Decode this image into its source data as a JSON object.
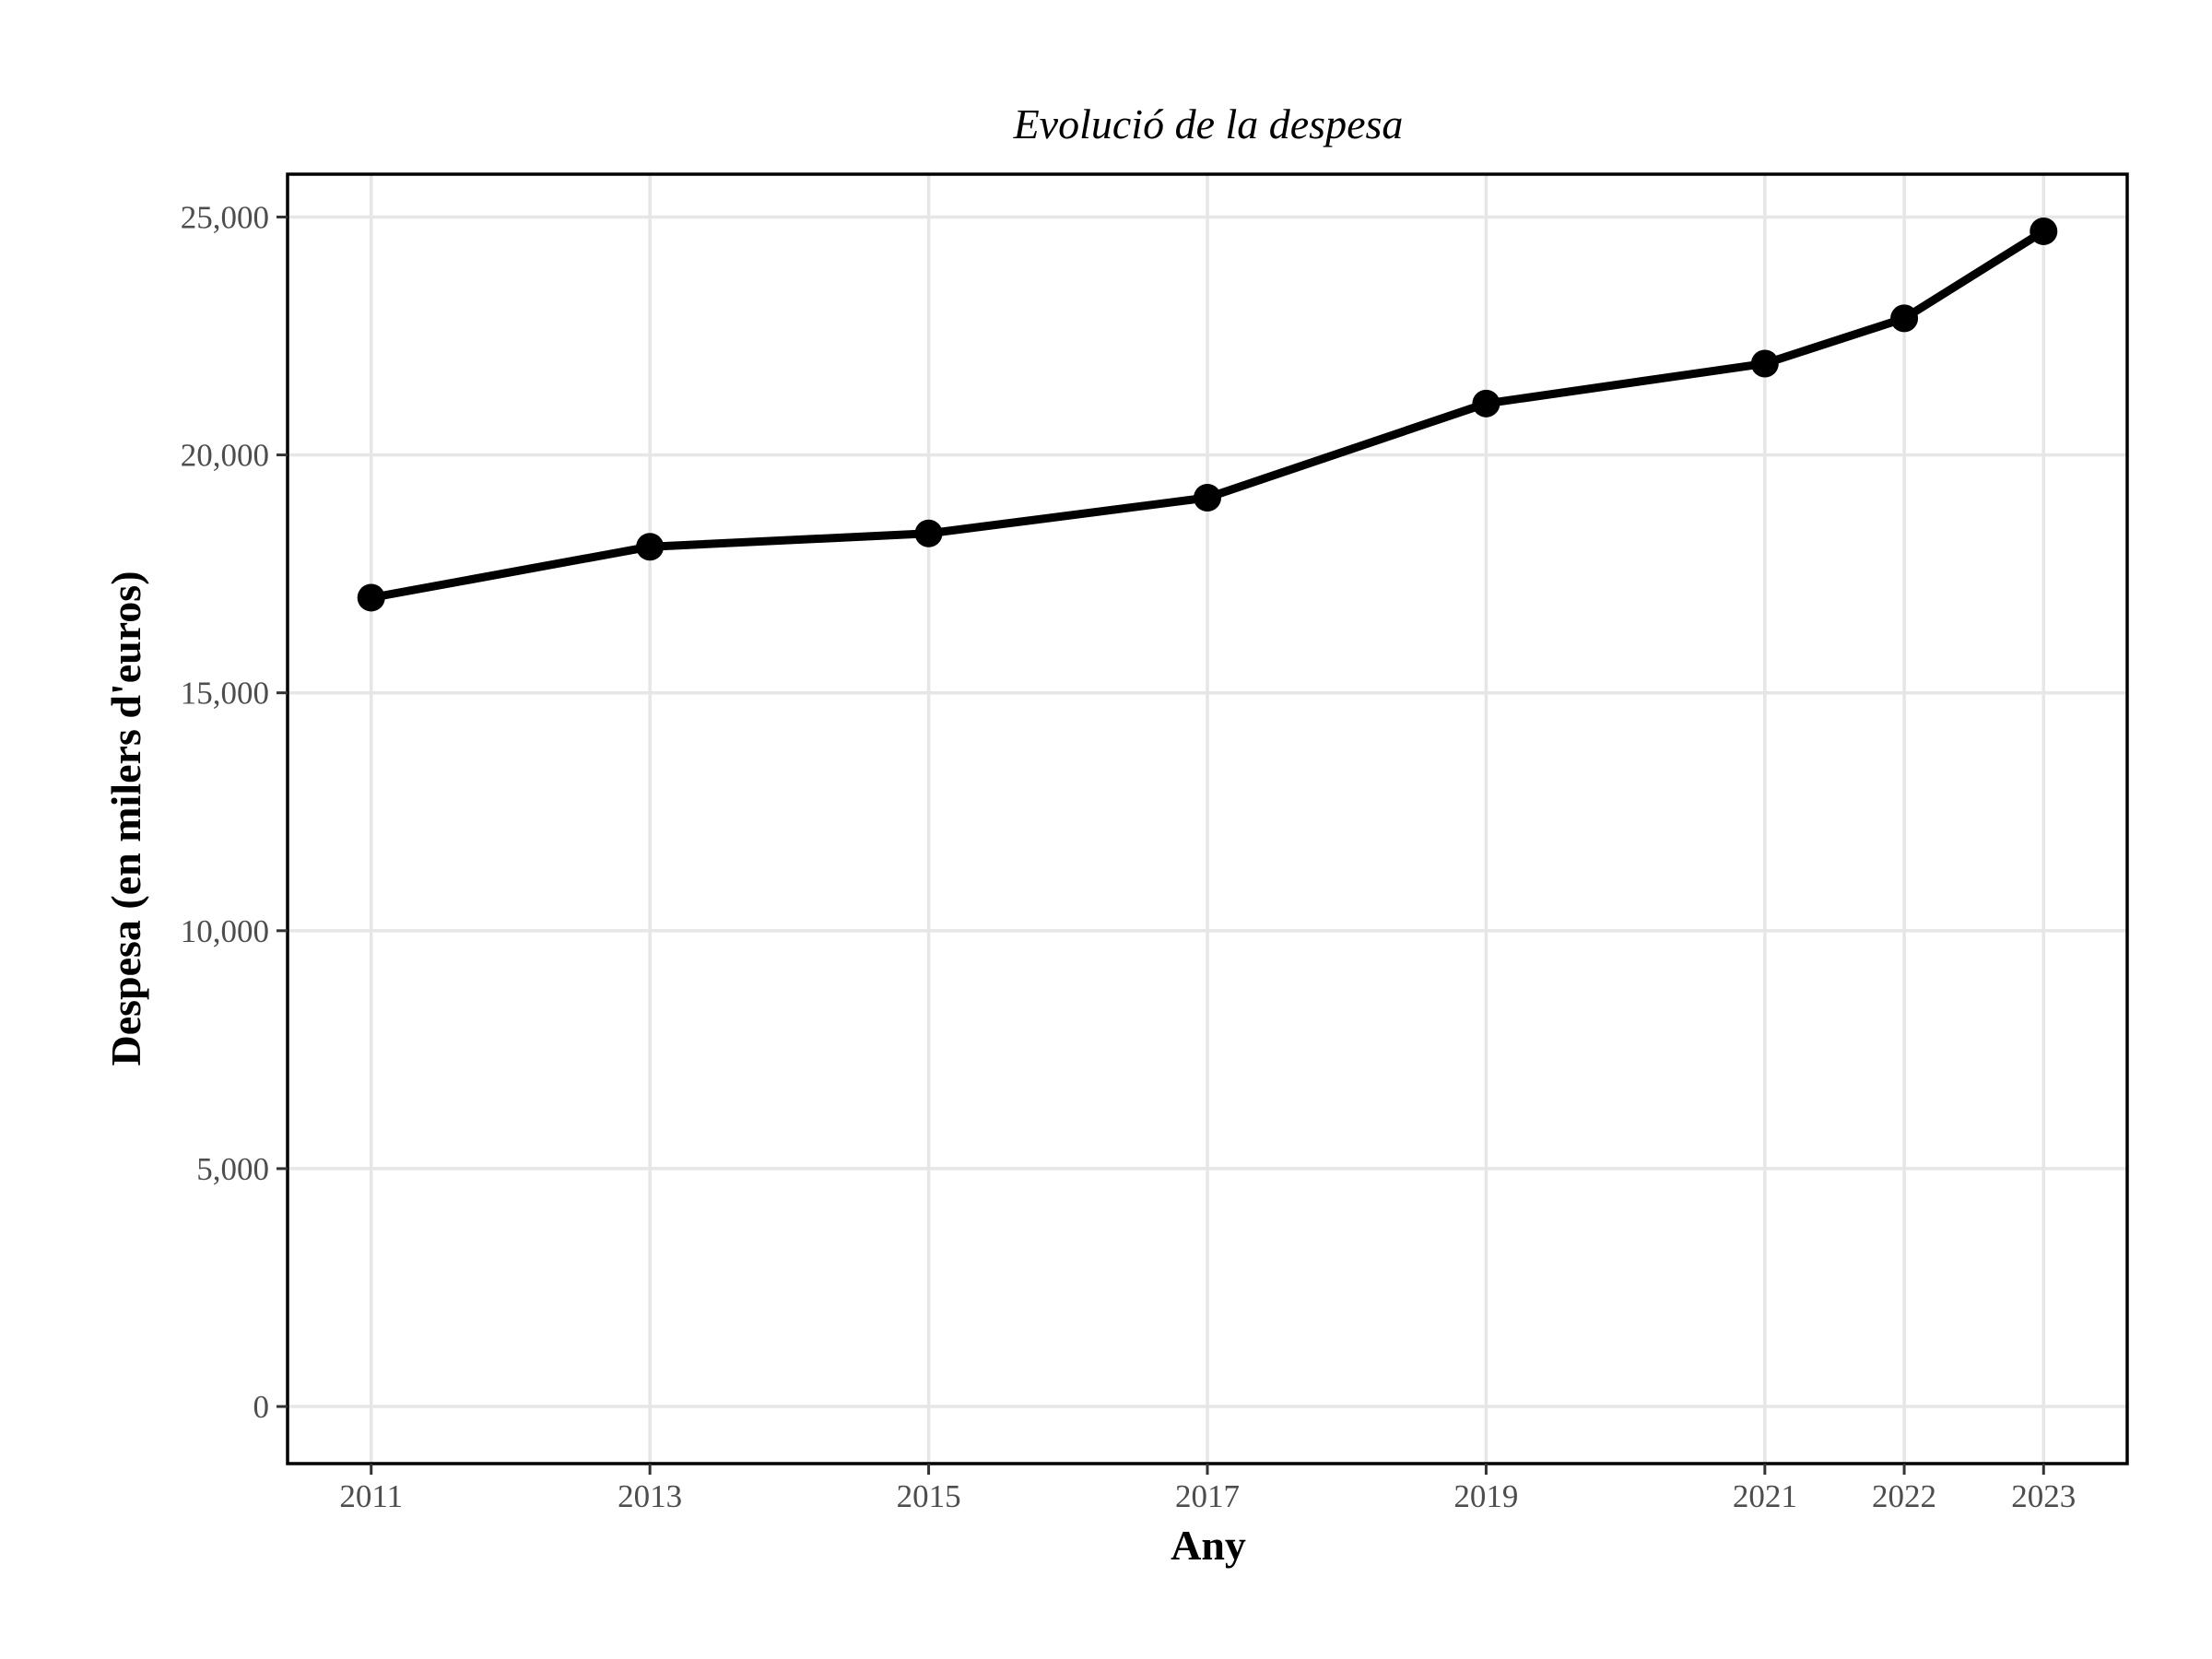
{
  "chart_data": {
    "type": "line",
    "title": "Evolució de la despesa",
    "xlabel": "Any",
    "ylabel": "Despesa (en milers d'euros)",
    "x": [
      2011,
      2013,
      2015,
      2017,
      2019,
      2021,
      2022,
      2023
    ],
    "values": [
      17000,
      18070,
      18350,
      19100,
      21080,
      21920,
      22870,
      24700
    ],
    "xlim": [
      2010.4,
      2023.6
    ],
    "ylim": [
      -1200,
      25900
    ],
    "xticks": [
      2011,
      2013,
      2015,
      2017,
      2019,
      2021,
      2022,
      2023
    ],
    "xtick_labels": [
      "2011",
      "2013",
      "2015",
      "2017",
      "2019",
      "2021",
      "2022",
      "2023"
    ],
    "yticks": [
      0,
      5000,
      10000,
      15000,
      20000,
      25000
    ],
    "ytick_labels": [
      "0",
      "5,000",
      "10,000",
      "15,000",
      "20,000",
      "25,000"
    ],
    "grid": true,
    "colors": {
      "line": "#000000",
      "grid": "#e6e6e6",
      "tick_text": "#4d4d4d"
    }
  }
}
